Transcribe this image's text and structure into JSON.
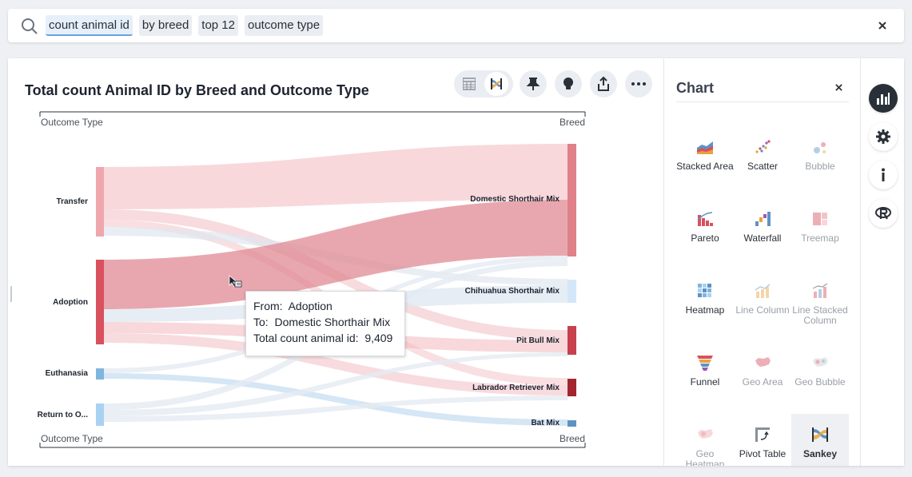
{
  "search": {
    "tokens": [
      "count animal id",
      "by breed",
      "top 12",
      "outcome type"
    ]
  },
  "chart_title": "Total count Animal ID by Breed and Outcome Type",
  "tooltip": {
    "from_label": "From:",
    "from_value": "Adoption",
    "to_label": "To:",
    "to_value": "Domestic Shorthair Mix",
    "metric_label": "Total count animal id:",
    "metric_value": "9,409"
  },
  "chart_data": {
    "type": "sankey",
    "title": "Total count Animal ID by Breed and Outcome Type",
    "left_axis_label": "Outcome Type",
    "right_axis_label": "Breed",
    "sources": [
      {
        "name": "Transfer",
        "color": "#f0a6ad"
      },
      {
        "name": "Adoption",
        "color": "#d9505e"
      },
      {
        "name": "Euthanasia",
        "color": "#7fb6e0"
      },
      {
        "name": "Return to O...",
        "color": "#a9d2f2"
      }
    ],
    "targets": [
      {
        "name": "Domestic Shorthair Mix",
        "color": "#e08088"
      },
      {
        "name": "Chihuahua Shorthair Mix",
        "color": "#d3e7f8"
      },
      {
        "name": "Pit Bull Mix",
        "color": "#c8404e"
      },
      {
        "name": "Labrador Retriever Mix",
        "color": "#a3262f"
      },
      {
        "name": "Bat Mix",
        "color": "#5d93c4"
      }
    ],
    "highlighted_link": {
      "source": "Adoption",
      "target": "Domestic Shorthair Mix",
      "value": 9409
    }
  },
  "side_panel": {
    "title": "Chart",
    "chart_types": [
      {
        "label": "Stacked Area",
        "state": "enabled",
        "icon": "stacked-area-icon"
      },
      {
        "label": "Scatter",
        "state": "enabled",
        "icon": "scatter-icon"
      },
      {
        "label": "Bubble",
        "state": "disabled",
        "icon": "bubble-icon"
      },
      {
        "label": "Pareto",
        "state": "enabled",
        "icon": "pareto-icon"
      },
      {
        "label": "Waterfall",
        "state": "enabled",
        "icon": "waterfall-icon"
      },
      {
        "label": "Treemap",
        "state": "disabled",
        "icon": "treemap-icon"
      },
      {
        "label": "Heatmap",
        "state": "enabled",
        "icon": "heatmap-icon"
      },
      {
        "label": "Line Column",
        "state": "disabled",
        "icon": "line-column-icon"
      },
      {
        "label": "Line Stacked Column",
        "state": "disabled",
        "icon": "line-stacked-column-icon"
      },
      {
        "label": "Funnel",
        "state": "enabled",
        "icon": "funnel-icon"
      },
      {
        "label": "Geo Area",
        "state": "disabled",
        "icon": "geo-area-icon"
      },
      {
        "label": "Geo Bubble",
        "state": "disabled",
        "icon": "geo-bubble-icon"
      },
      {
        "label": "Geo Heatmap",
        "state": "disabled",
        "icon": "geo-heatmap-icon"
      },
      {
        "label": "Pivot Table",
        "state": "enabled",
        "icon": "pivot-table-icon"
      },
      {
        "label": "Sankey",
        "state": "selected",
        "icon": "sankey-icon"
      }
    ]
  },
  "colors": {
    "accent": "#2a3038",
    "link_base": "#f2b8bd",
    "link_highlight": "#e08a93",
    "link_blue": "#b9d6ef"
  }
}
